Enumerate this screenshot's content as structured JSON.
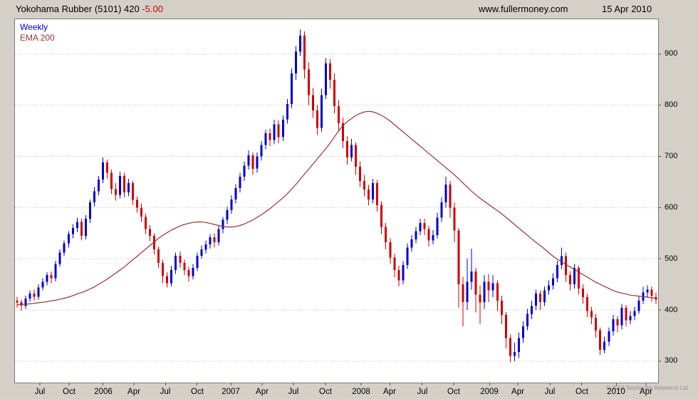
{
  "header": {
    "title": "Yokohama Rubber (5101) 420 ",
    "change": "-5.00",
    "change_color": "#cc0000",
    "website": "www.fullermoney.com",
    "date": "15 Apr 2010"
  },
  "legend": {
    "series": "Weekly",
    "overlay": "EMA 200"
  },
  "footer": {
    "copyright": "© 2010 Stockcube Research Ltd"
  },
  "chart_data": {
    "type": "candlestick",
    "title": "Yokohama Rubber (5101) weekly candles with 200-period EMA",
    "ylim": [
      258,
      968
    ],
    "yticks": [
      300,
      400,
      500,
      600,
      700,
      800,
      900
    ],
    "grid": "dotted-horizontal",
    "grid_color": "#bfbfbf",
    "frame_color": "#7a7a7a",
    "up_color": "#0000cc",
    "down_color": "#cc0000",
    "ema_color": "#993333",
    "xticks": [
      {
        "label": "Jul",
        "pos": 0.039
      },
      {
        "label": "Oct",
        "pos": 0.084
      },
      {
        "label": "2006",
        "pos": 0.137
      },
      {
        "label": "Apr",
        "pos": 0.185
      },
      {
        "label": "Jul",
        "pos": 0.234
      },
      {
        "label": "Oct",
        "pos": 0.283
      },
      {
        "label": "2007",
        "pos": 0.336
      },
      {
        "label": "Apr",
        "pos": 0.384
      },
      {
        "label": "Jul",
        "pos": 0.433
      },
      {
        "label": "Oct",
        "pos": 0.483
      },
      {
        "label": "2008",
        "pos": 0.538
      },
      {
        "label": "Apr",
        "pos": 0.583
      },
      {
        "label": "Jul",
        "pos": 0.633
      },
      {
        "label": "Oct",
        "pos": 0.682
      },
      {
        "label": "2009",
        "pos": 0.738
      },
      {
        "label": "Apr",
        "pos": 0.782
      },
      {
        "label": "Jul",
        "pos": 0.832
      },
      {
        "label": "Oct",
        "pos": 0.881
      },
      {
        "label": "2010",
        "pos": 0.935
      },
      {
        "label": "Apr",
        "pos": 0.981
      }
    ],
    "candles": [
      [
        418,
        426,
        405,
        415
      ],
      [
        415,
        420,
        398,
        408
      ],
      [
        408,
        428,
        402,
        422
      ],
      [
        422,
        438,
        416,
        432
      ],
      [
        432,
        440,
        418,
        426
      ],
      [
        426,
        450,
        420,
        444
      ],
      [
        444,
        462,
        438,
        455
      ],
      [
        455,
        474,
        448,
        468
      ],
      [
        468,
        475,
        452,
        462
      ],
      [
        462,
        496,
        456,
        490
      ],
      [
        490,
        518,
        484,
        512
      ],
      [
        512,
        536,
        505,
        530
      ],
      [
        530,
        554,
        522,
        548
      ],
      [
        548,
        568,
        540,
        560
      ],
      [
        560,
        580,
        552,
        572
      ],
      [
        572,
        578,
        536,
        545
      ],
      [
        545,
        585,
        538,
        578
      ],
      [
        578,
        616,
        570,
        610
      ],
      [
        610,
        640,
        602,
        632
      ],
      [
        632,
        662,
        624,
        655
      ],
      [
        655,
        698,
        648,
        688
      ],
      [
        688,
        694,
        656,
        668
      ],
      [
        668,
        674,
        626,
        636
      ],
      [
        636,
        648,
        614,
        625
      ],
      [
        625,
        670,
        618,
        662
      ],
      [
        662,
        668,
        620,
        630
      ],
      [
        630,
        656,
        622,
        648
      ],
      [
        648,
        652,
        605,
        615
      ],
      [
        615,
        622,
        590,
        600
      ],
      [
        600,
        608,
        572,
        582
      ],
      [
        582,
        588,
        548,
        558
      ],
      [
        558,
        566,
        534,
        545
      ],
      [
        545,
        550,
        508,
        518
      ],
      [
        518,
        524,
        482,
        492
      ],
      [
        492,
        498,
        452,
        466
      ],
      [
        466,
        474,
        444,
        452
      ],
      [
        452,
        486,
        446,
        478
      ],
      [
        478,
        512,
        470,
        506
      ],
      [
        506,
        514,
        482,
        492
      ],
      [
        492,
        498,
        468,
        478
      ],
      [
        478,
        484,
        456,
        466
      ],
      [
        466,
        490,
        460,
        482
      ],
      [
        482,
        512,
        476,
        506
      ],
      [
        506,
        526,
        500,
        518
      ],
      [
        518,
        536,
        510,
        528
      ],
      [
        528,
        548,
        520,
        542
      ],
      [
        542,
        550,
        522,
        532
      ],
      [
        532,
        564,
        526,
        558
      ],
      [
        558,
        582,
        550,
        576
      ],
      [
        576,
        602,
        568,
        595
      ],
      [
        595,
        624,
        588,
        616
      ],
      [
        616,
        646,
        608,
        638
      ],
      [
        638,
        668,
        630,
        660
      ],
      [
        660,
        690,
        652,
        682
      ],
      [
        682,
        712,
        674,
        702
      ],
      [
        702,
        708,
        664,
        676
      ],
      [
        676,
        708,
        668,
        700
      ],
      [
        700,
        730,
        692,
        722
      ],
      [
        722,
        752,
        714,
        745
      ],
      [
        745,
        754,
        720,
        732
      ],
      [
        732,
        772,
        724,
        763
      ],
      [
        763,
        770,
        726,
        738
      ],
      [
        738,
        780,
        730,
        772
      ],
      [
        772,
        812,
        764,
        802
      ],
      [
        802,
        872,
        794,
        862
      ],
      [
        862,
        916,
        850,
        905
      ],
      [
        905,
        948,
        896,
        936
      ],
      [
        936,
        944,
        852,
        870
      ],
      [
        870,
        884,
        800,
        820
      ],
      [
        820,
        834,
        775,
        790
      ],
      [
        790,
        800,
        742,
        756
      ],
      [
        756,
        832,
        748,
        820
      ],
      [
        820,
        892,
        812,
        882
      ],
      [
        882,
        890,
        832,
        850
      ],
      [
        850,
        862,
        784,
        798
      ],
      [
        798,
        810,
        750,
        765
      ],
      [
        765,
        776,
        716,
        730
      ],
      [
        730,
        740,
        684,
        698
      ],
      [
        698,
        734,
        690,
        722
      ],
      [
        722,
        728,
        664,
        680
      ],
      [
        680,
        690,
        640,
        652
      ],
      [
        652,
        664,
        622,
        635
      ],
      [
        635,
        644,
        604,
        616
      ],
      [
        616,
        656,
        608,
        648
      ],
      [
        648,
        654,
        592,
        605
      ],
      [
        605,
        612,
        548,
        562
      ],
      [
        562,
        570,
        518,
        532
      ],
      [
        532,
        540,
        490,
        502
      ],
      [
        502,
        510,
        464,
        478
      ],
      [
        478,
        486,
        446,
        458
      ],
      [
        458,
        496,
        450,
        488
      ],
      [
        488,
        530,
        480,
        522
      ],
      [
        522,
        546,
        514,
        538
      ],
      [
        538,
        562,
        530,
        554
      ],
      [
        554,
        578,
        546,
        570
      ],
      [
        570,
        578,
        546,
        558
      ],
      [
        558,
        564,
        524,
        536
      ],
      [
        536,
        556,
        528,
        546
      ],
      [
        546,
        590,
        540,
        580
      ],
      [
        580,
        620,
        572,
        610
      ],
      [
        610,
        660,
        600,
        645
      ],
      [
        645,
        652,
        580,
        600
      ],
      [
        600,
        610,
        532,
        555
      ],
      [
        555,
        560,
        405,
        450
      ],
      [
        450,
        465,
        368,
        415
      ],
      [
        415,
        500,
        400,
        455
      ],
      [
        455,
        520,
        440,
        475
      ],
      [
        475,
        482,
        395,
        430
      ],
      [
        430,
        448,
        372,
        415
      ],
      [
        415,
        468,
        402,
        455
      ],
      [
        455,
        470,
        415,
        438
      ],
      [
        438,
        468,
        425,
        452
      ],
      [
        452,
        458,
        398,
        418
      ],
      [
        418,
        428,
        372,
        390
      ],
      [
        390,
        396,
        325,
        345
      ],
      [
        345,
        352,
        298,
        310
      ],
      [
        310,
        336,
        300,
        318
      ],
      [
        318,
        356,
        306,
        345
      ],
      [
        345,
        378,
        336,
        368
      ],
      [
        368,
        402,
        360,
        392
      ],
      [
        392,
        418,
        382,
        408
      ],
      [
        408,
        440,
        400,
        432
      ],
      [
        432,
        438,
        400,
        415
      ],
      [
        415,
        446,
        408,
        438
      ],
      [
        438,
        458,
        430,
        448
      ],
      [
        448,
        472,
        440,
        462
      ],
      [
        462,
        496,
        454,
        488
      ],
      [
        488,
        522,
        480,
        505
      ],
      [
        505,
        512,
        455,
        468
      ],
      [
        468,
        476,
        438,
        450
      ],
      [
        450,
        490,
        442,
        482
      ],
      [
        482,
        486,
        430,
        442
      ],
      [
        442,
        450,
        412,
        425
      ],
      [
        425,
        432,
        386,
        398
      ],
      [
        398,
        406,
        372,
        385
      ],
      [
        385,
        392,
        346,
        360
      ],
      [
        360,
        366,
        312,
        322
      ],
      [
        322,
        348,
        315,
        338
      ],
      [
        338,
        366,
        330,
        358
      ],
      [
        358,
        390,
        350,
        382
      ],
      [
        382,
        388,
        356,
        370
      ],
      [
        370,
        412,
        362,
        404
      ],
      [
        404,
        410,
        368,
        380
      ],
      [
        380,
        398,
        372,
        388
      ],
      [
        388,
        406,
        380,
        398
      ],
      [
        398,
        426,
        392,
        418
      ],
      [
        418,
        445,
        412,
        434
      ],
      [
        434,
        448,
        424,
        440
      ],
      [
        440,
        446,
        416,
        428
      ],
      [
        425,
        434,
        412,
        420
      ]
    ],
    "ema": [
      410,
      411,
      411,
      412,
      413,
      414,
      415,
      416,
      418,
      419,
      421,
      423,
      425,
      428,
      431,
      434,
      437,
      441,
      445,
      450,
      455,
      460,
      466,
      472,
      478,
      484,
      491,
      498,
      505,
      512,
      519,
      526,
      533,
      540,
      546,
      551,
      556,
      560,
      564,
      567,
      569,
      571,
      572,
      572,
      571,
      569,
      567,
      565,
      563,
      562,
      562,
      563,
      565,
      568,
      572,
      576,
      581,
      586,
      592,
      598,
      605,
      612,
      619,
      627,
      636,
      645,
      655,
      665,
      675,
      685,
      695,
      705,
      715,
      726,
      738,
      750,
      760,
      768,
      774,
      780,
      784,
      787,
      788,
      787,
      784,
      780,
      775,
      769,
      762,
      755,
      748,
      741,
      734,
      727,
      720,
      713,
      706,
      699,
      692,
      685,
      678,
      671,
      664,
      656,
      648,
      640,
      632,
      625,
      618,
      612,
      606,
      600,
      594,
      588,
      581,
      574,
      567,
      560,
      553,
      546,
      539,
      532,
      526,
      519,
      512,
      505,
      499,
      494,
      489,
      484,
      479,
      474,
      469,
      464,
      459,
      454,
      450,
      446,
      442,
      438,
      435,
      433,
      431,
      429,
      428,
      427,
      426,
      425,
      424,
      423
    ]
  }
}
